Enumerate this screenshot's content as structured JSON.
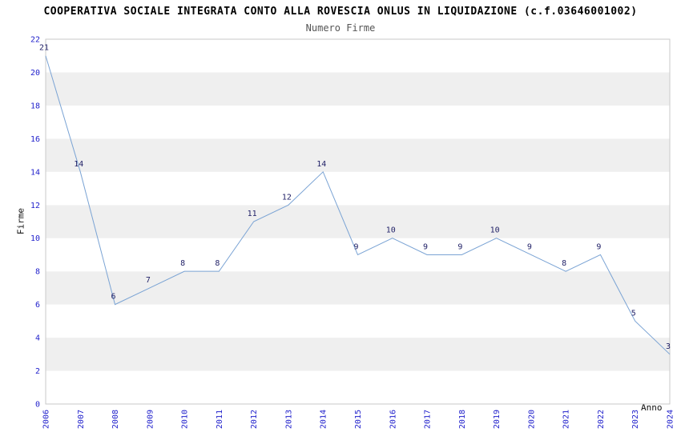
{
  "header": {
    "title": "COOPERATIVA SOCIALE INTEGRATA CONTO ALLA ROVESCIA ONLUS IN LIQUIDAZIONE (c.f.03646001002)",
    "subtitle": "Numero Firme"
  },
  "chart_data": {
    "type": "line",
    "title": "COOPERATIVA SOCIALE INTEGRATA CONTO ALLA ROVESCIA ONLUS IN LIQUIDAZIONE (c.f.03646001002)",
    "subtitle": "Numero Firme",
    "xlabel": "Anno",
    "ylabel": "Firme",
    "x": [
      2006,
      2007,
      2008,
      2009,
      2010,
      2011,
      2012,
      2013,
      2014,
      2015,
      2016,
      2017,
      2018,
      2019,
      2020,
      2021,
      2022,
      2023,
      2024
    ],
    "values": [
      21,
      14,
      6,
      7,
      8,
      8,
      11,
      12,
      14,
      9,
      10,
      9,
      9,
      10,
      9,
      8,
      9,
      5,
      3
    ],
    "ylim": [
      0,
      22
    ],
    "ytick_step": 2,
    "grid": "horizontal-bands",
    "legend": "none",
    "colors": {
      "line": "#7aa3d4",
      "tick_label": "#2222cc",
      "data_label": "#1f1f66",
      "band": "#efefef",
      "band_alt": "#ffffff",
      "plot_border": "#c9c9c9",
      "title": "#000000",
      "subtitle": "#555555"
    }
  }
}
